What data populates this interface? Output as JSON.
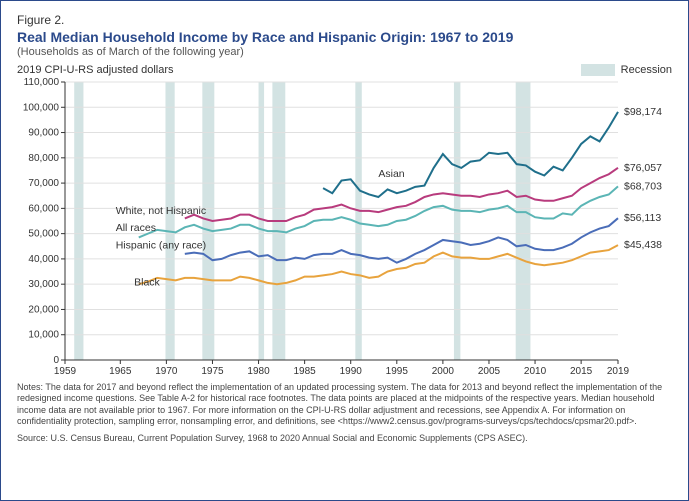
{
  "figure_label": "Figure 2.",
  "title": "Real Median Household Income by Race and Hispanic Origin: 1967 to 2019",
  "subtitle": "(Households as of March of the following year)",
  "unit_label": "2019 CPI-U-RS adjusted dollars",
  "recession_label": "Recession",
  "chart": {
    "type": "line",
    "xlim": [
      1959,
      2019
    ],
    "ylim": [
      0,
      110000
    ],
    "ytick_step": 10000,
    "xticks": [
      1959,
      1965,
      1970,
      1975,
      1980,
      1985,
      1990,
      1995,
      2000,
      2005,
      2010,
      2015,
      2019
    ],
    "yticks": [
      0,
      10000,
      20000,
      30000,
      40000,
      50000,
      60000,
      70000,
      80000,
      90000,
      100000,
      110000
    ],
    "background_color": "#ffffff",
    "grid_color": "#e0e0e0",
    "axis_color": "#333333",
    "recession_color": "#d3e3e3",
    "tick_fontsize": 10,
    "label_fontsize": 10.5,
    "line_width": 2,
    "recessions": [
      [
        1960,
        1961
      ],
      [
        1969.9,
        1970.9
      ],
      [
        1973.9,
        1975.2
      ],
      [
        1980.0,
        1980.6
      ],
      [
        1981.5,
        1982.9
      ],
      [
        1990.5,
        1991.2
      ],
      [
        2001.2,
        2001.9
      ],
      [
        2007.9,
        2009.5
      ]
    ],
    "series": [
      {
        "key": "asian",
        "label": "Asian",
        "color": "#1f6f8b",
        "label_x": 1993,
        "label_y": 72500,
        "end_value": 98174,
        "end_label": "$98,174",
        "data": [
          [
            1987,
            68000
          ],
          [
            1988,
            66000
          ],
          [
            1989,
            71000
          ],
          [
            1990,
            71500
          ],
          [
            1991,
            67000
          ],
          [
            1992,
            65500
          ],
          [
            1993,
            64500
          ],
          [
            1994,
            67500
          ],
          [
            1995,
            66000
          ],
          [
            1996,
            67000
          ],
          [
            1997,
            68500
          ],
          [
            1998,
            69000
          ],
          [
            1999,
            76000
          ],
          [
            2000,
            81500
          ],
          [
            2001,
            77500
          ],
          [
            2002,
            76000
          ],
          [
            2003,
            78500
          ],
          [
            2004,
            79000
          ],
          [
            2005,
            82000
          ],
          [
            2006,
            81500
          ],
          [
            2007,
            82000
          ],
          [
            2008,
            77500
          ],
          [
            2009,
            77000
          ],
          [
            2010,
            74500
          ],
          [
            2011,
            73000
          ],
          [
            2012,
            76500
          ],
          [
            2013,
            75000
          ],
          [
            2014,
            80000
          ],
          [
            2015,
            85500
          ],
          [
            2016,
            88500
          ],
          [
            2017,
            86500
          ],
          [
            2018,
            92000
          ],
          [
            2019,
            98174
          ]
        ]
      },
      {
        "key": "white_nh",
        "label": "White, not Hispanic",
        "color": "#b83b7d",
        "label_x": 1964.5,
        "label_y": 57800,
        "end_value": 76057,
        "end_label": "$76,057",
        "data": [
          [
            1972,
            56000
          ],
          [
            1973,
            57500
          ],
          [
            1974,
            56000
          ],
          [
            1975,
            55000
          ],
          [
            1976,
            55500
          ],
          [
            1977,
            56000
          ],
          [
            1978,
            57500
          ],
          [
            1979,
            57500
          ],
          [
            1980,
            56000
          ],
          [
            1981,
            55000
          ],
          [
            1982,
            55000
          ],
          [
            1983,
            55000
          ],
          [
            1984,
            56500
          ],
          [
            1985,
            57500
          ],
          [
            1986,
            59500
          ],
          [
            1987,
            60000
          ],
          [
            1988,
            60500
          ],
          [
            1989,
            61500
          ],
          [
            1990,
            60000
          ],
          [
            1991,
            59000
          ],
          [
            1992,
            59000
          ],
          [
            1993,
            58500
          ],
          [
            1994,
            59500
          ],
          [
            1995,
            60500
          ],
          [
            1996,
            61000
          ],
          [
            1997,
            62500
          ],
          [
            1998,
            64500
          ],
          [
            1999,
            65500
          ],
          [
            2000,
            66000
          ],
          [
            2001,
            65500
          ],
          [
            2002,
            65000
          ],
          [
            2003,
            65000
          ],
          [
            2004,
            64500
          ],
          [
            2005,
            65500
          ],
          [
            2006,
            66000
          ],
          [
            2007,
            67000
          ],
          [
            2008,
            64500
          ],
          [
            2009,
            65000
          ],
          [
            2010,
            63500
          ],
          [
            2011,
            63000
          ],
          [
            2012,
            63000
          ],
          [
            2013,
            64000
          ],
          [
            2014,
            65000
          ],
          [
            2015,
            68000
          ],
          [
            2016,
            70000
          ],
          [
            2017,
            72000
          ],
          [
            2018,
            73500
          ],
          [
            2019,
            76057
          ]
        ]
      },
      {
        "key": "all_races",
        "label": "All races",
        "color": "#5bb5b5",
        "label_x": 1964.5,
        "label_y": 51000,
        "end_value": 68703,
        "end_label": "$68,703",
        "data": [
          [
            1967,
            48500
          ],
          [
            1968,
            50000
          ],
          [
            1969,
            51500
          ],
          [
            1970,
            51000
          ],
          [
            1971,
            50500
          ],
          [
            1972,
            52500
          ],
          [
            1973,
            53500
          ],
          [
            1974,
            52000
          ],
          [
            1975,
            51000
          ],
          [
            1976,
            51500
          ],
          [
            1977,
            52000
          ],
          [
            1978,
            53500
          ],
          [
            1979,
            53500
          ],
          [
            1980,
            52000
          ],
          [
            1981,
            51000
          ],
          [
            1982,
            51000
          ],
          [
            1983,
            50500
          ],
          [
            1984,
            52000
          ],
          [
            1985,
            53000
          ],
          [
            1986,
            55000
          ],
          [
            1987,
            55500
          ],
          [
            1988,
            55500
          ],
          [
            1989,
            56500
          ],
          [
            1990,
            55500
          ],
          [
            1991,
            54000
          ],
          [
            1992,
            53500
          ],
          [
            1993,
            53000
          ],
          [
            1994,
            53500
          ],
          [
            1995,
            55000
          ],
          [
            1996,
            55500
          ],
          [
            1997,
            57000
          ],
          [
            1998,
            59000
          ],
          [
            1999,
            60500
          ],
          [
            2000,
            61000
          ],
          [
            2001,
            59500
          ],
          [
            2002,
            59000
          ],
          [
            2003,
            59000
          ],
          [
            2004,
            58500
          ],
          [
            2005,
            59500
          ],
          [
            2006,
            60000
          ],
          [
            2007,
            61000
          ],
          [
            2008,
            58500
          ],
          [
            2009,
            58500
          ],
          [
            2010,
            56500
          ],
          [
            2011,
            56000
          ],
          [
            2012,
            56000
          ],
          [
            2013,
            58000
          ],
          [
            2014,
            57500
          ],
          [
            2015,
            61000
          ],
          [
            2016,
            63000
          ],
          [
            2017,
            64500
          ],
          [
            2018,
            65500
          ],
          [
            2019,
            68703
          ]
        ]
      },
      {
        "key": "hispanic",
        "label": "Hispanic (any race)",
        "color": "#4a6db8",
        "label_x": 1964.5,
        "label_y": 44200,
        "end_value": 56113,
        "end_label": "$56,113",
        "data": [
          [
            1972,
            42000
          ],
          [
            1973,
            42500
          ],
          [
            1974,
            42000
          ],
          [
            1975,
            39500
          ],
          [
            1976,
            40000
          ],
          [
            1977,
            41500
          ],
          [
            1978,
            42500
          ],
          [
            1979,
            43000
          ],
          [
            1980,
            41000
          ],
          [
            1981,
            41500
          ],
          [
            1982,
            39500
          ],
          [
            1983,
            39500
          ],
          [
            1984,
            40500
          ],
          [
            1985,
            40000
          ],
          [
            1986,
            41500
          ],
          [
            1987,
            42000
          ],
          [
            1988,
            42000
          ],
          [
            1989,
            43500
          ],
          [
            1990,
            42000
          ],
          [
            1991,
            41500
          ],
          [
            1992,
            40500
          ],
          [
            1993,
            40000
          ],
          [
            1994,
            40500
          ],
          [
            1995,
            38500
          ],
          [
            1996,
            40000
          ],
          [
            1997,
            42000
          ],
          [
            1998,
            43500
          ],
          [
            1999,
            45500
          ],
          [
            2000,
            47500
          ],
          [
            2001,
            47000
          ],
          [
            2002,
            46500
          ],
          [
            2003,
            45500
          ],
          [
            2004,
            46000
          ],
          [
            2005,
            47000
          ],
          [
            2006,
            48500
          ],
          [
            2007,
            47500
          ],
          [
            2008,
            45000
          ],
          [
            2009,
            45500
          ],
          [
            2010,
            44000
          ],
          [
            2011,
            43500
          ],
          [
            2012,
            43500
          ],
          [
            2013,
            44500
          ],
          [
            2014,
            46000
          ],
          [
            2015,
            48500
          ],
          [
            2016,
            50500
          ],
          [
            2017,
            52000
          ],
          [
            2018,
            53000
          ],
          [
            2019,
            56113
          ]
        ]
      },
      {
        "key": "black",
        "label": "Black",
        "color": "#e8a33d",
        "label_x": 1966.5,
        "label_y": 29500,
        "end_value": 45438,
        "end_label": "$45,438",
        "data": [
          [
            1967,
            30000
          ],
          [
            1968,
            31000
          ],
          [
            1969,
            32500
          ],
          [
            1970,
            32000
          ],
          [
            1971,
            31500
          ],
          [
            1972,
            32500
          ],
          [
            1973,
            32500
          ],
          [
            1974,
            32000
          ],
          [
            1975,
            31500
          ],
          [
            1976,
            31500
          ],
          [
            1977,
            31500
          ],
          [
            1978,
            33000
          ],
          [
            1979,
            32500
          ],
          [
            1980,
            31500
          ],
          [
            1981,
            30500
          ],
          [
            1982,
            30000
          ],
          [
            1983,
            30500
          ],
          [
            1984,
            31500
          ],
          [
            1985,
            33000
          ],
          [
            1986,
            33000
          ],
          [
            1987,
            33500
          ],
          [
            1988,
            34000
          ],
          [
            1989,
            35000
          ],
          [
            1990,
            34000
          ],
          [
            1991,
            33500
          ],
          [
            1992,
            32500
          ],
          [
            1993,
            33000
          ],
          [
            1994,
            35000
          ],
          [
            1995,
            36000
          ],
          [
            1996,
            36500
          ],
          [
            1997,
            38000
          ],
          [
            1998,
            38500
          ],
          [
            1999,
            41000
          ],
          [
            2000,
            42500
          ],
          [
            2001,
            41000
          ],
          [
            2002,
            40500
          ],
          [
            2003,
            40500
          ],
          [
            2004,
            40000
          ],
          [
            2005,
            40000
          ],
          [
            2006,
            41000
          ],
          [
            2007,
            42000
          ],
          [
            2008,
            40500
          ],
          [
            2009,
            39000
          ],
          [
            2010,
            38000
          ],
          [
            2011,
            37500
          ],
          [
            2012,
            38000
          ],
          [
            2013,
            38500
          ],
          [
            2014,
            39500
          ],
          [
            2015,
            41000
          ],
          [
            2016,
            42500
          ],
          [
            2017,
            43000
          ],
          [
            2018,
            43500
          ],
          [
            2019,
            45438
          ]
        ]
      }
    ]
  },
  "notes": "Notes: The data for 2017 and beyond reflect the implementation of an updated processing system. The data for 2013 and beyond reflect the implementation of the redesigned income questions. See Table A-2 for historical race footnotes. The data points are placed at the midpoints of the respective years. Median household income data are not available prior to 1967. For more information on the CPI-U-RS dollar adjustment and recessions, see Appendix A. For information on confidentiality protection, sampling error, nonsampling error, and definitions, see <https://www2.census.gov/programs-surveys/cps/techdocs/cpsmar20.pdf>.",
  "source": "Source: U.S. Census Bureau, Current Population Survey, 1968 to 2020 Annual Social and Economic Supplements (CPS ASEC)."
}
